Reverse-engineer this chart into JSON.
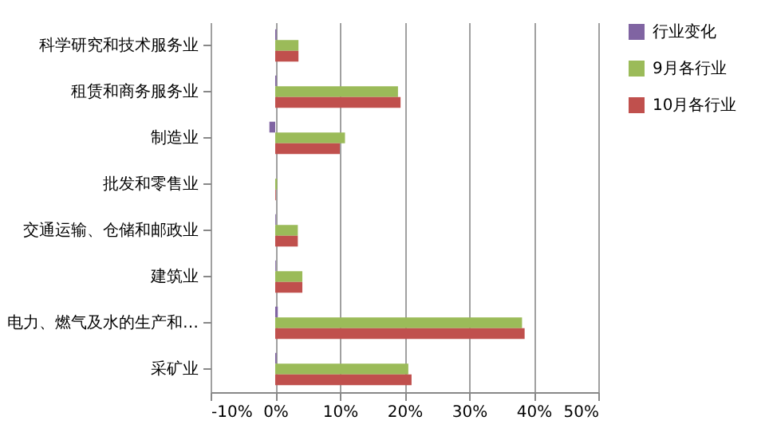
{
  "chart_data": {
    "type": "bar",
    "orientation": "horizontal",
    "categories": [
      "科学研究和技术服务业",
      "租赁和商务服务业",
      "制造业",
      "批发和零售业",
      "交通运输、仓储和邮政业",
      "建筑业",
      "电力、燃气及水的生产和…",
      "采矿业"
    ],
    "series": [
      {
        "name": "行业变化",
        "color": "#8064a2",
        "values": [
          0.2,
          0.2,
          -0.9,
          0.0,
          0.1,
          0.1,
          0.4,
          0.2
        ]
      },
      {
        "name": "9月各行业",
        "color": "#9bbb59",
        "values": [
          3.6,
          19.0,
          10.8,
          0.3,
          3.5,
          4.2,
          38.2,
          20.6
        ]
      },
      {
        "name": "10月各行业",
        "color": "#c0504d",
        "values": [
          3.6,
          19.4,
          10.0,
          0.1,
          3.5,
          4.2,
          38.6,
          21.1
        ]
      }
    ],
    "xlim": [
      -10,
      50
    ],
    "xticks": [
      {
        "value": -10,
        "label": "-10%"
      },
      {
        "value": 0,
        "label": "0%"
      },
      {
        "value": 10,
        "label": "10%"
      },
      {
        "value": 20,
        "label": "20%"
      },
      {
        "value": 30,
        "label": "30%"
      },
      {
        "value": 40,
        "label": "40%"
      },
      {
        "value": 50,
        "label": "50%"
      }
    ],
    "grid": "x",
    "legend": "right"
  }
}
